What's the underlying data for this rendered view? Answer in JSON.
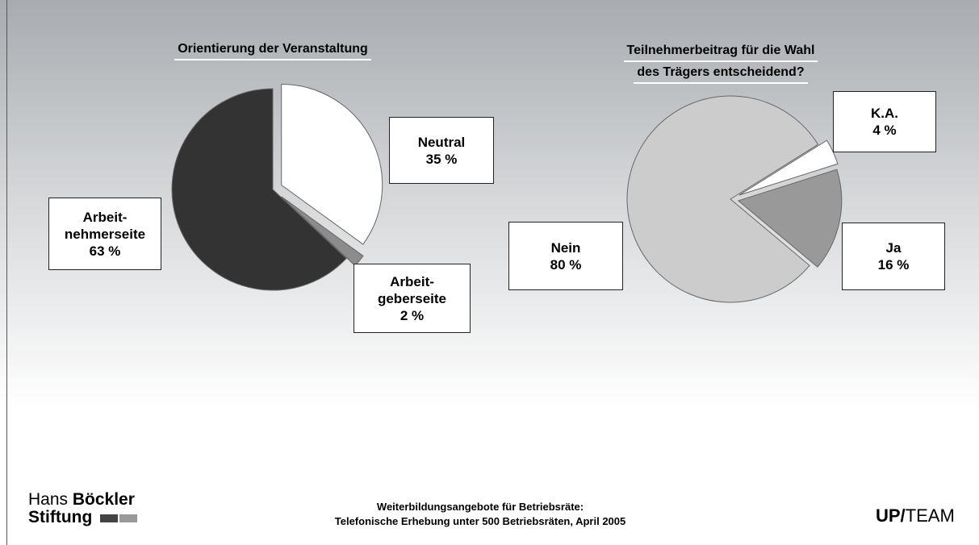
{
  "chart_data": [
    {
      "type": "pie",
      "title": [
        "Orientierung der Veranstaltung"
      ],
      "categories": [
        "Neutral",
        "Arbeit-geberseite",
        "Arbeit-nehmerseite"
      ],
      "values": [
        35,
        2,
        63
      ],
      "value_labels": [
        "35 %",
        "2 %",
        "63 %"
      ],
      "colors": [
        "#ffffff",
        "#8c8c8c",
        "#333333"
      ]
    },
    {
      "type": "pie",
      "title": [
        "Teilnehmerbeitrag für die Wahl",
        "des Trägers entscheidend?"
      ],
      "categories": [
        "K.A.",
        "Ja",
        "Nein"
      ],
      "values": [
        4,
        16,
        80
      ],
      "value_labels": [
        "4 %",
        "16 %",
        "80 %"
      ],
      "colors": [
        "#ffffff",
        "#999999",
        "#cccccc"
      ]
    }
  ],
  "footer": {
    "logo": [
      "Hans",
      "Böckler",
      "Stiftung"
    ],
    "credit": [
      "Weiterbildungsangebote für Betriebsräte:",
      "Telefonische Erhebung unter 500 Betriebsräten, April 2005"
    ],
    "brand": [
      "UP/",
      "TEAM"
    ]
  }
}
